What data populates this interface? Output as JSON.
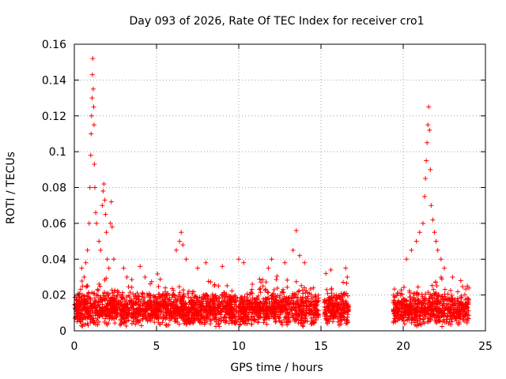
{
  "chart_data": {
    "type": "scatter",
    "title": "Day 093 of 2026, Rate Of TEC Index for receiver cro1",
    "xlabel": "GPS time / hours",
    "ylabel": "ROTI / TECUs",
    "xlim": [
      0,
      25
    ],
    "ylim": [
      0,
      0.16
    ],
    "xticks": [
      0,
      5,
      10,
      15,
      20,
      25
    ],
    "xtick_labels": [
      "0",
      "5",
      "10",
      "15",
      "20",
      "25"
    ],
    "yticks": [
      0,
      0.02,
      0.04,
      0.06,
      0.08,
      0.1,
      0.12,
      0.14,
      0.16
    ],
    "ytick_labels": [
      "0",
      "0.02",
      "0.04",
      "0.06",
      "0.08",
      "0.1",
      "0.12",
      "0.14",
      "0.16"
    ],
    "grid": true,
    "marker": "+",
    "color": "#ff0000",
    "series": [
      {
        "name": "ROTI",
        "segments": [
          {
            "x_range": [
              0.0,
              14.85
            ],
            "base": 0.012,
            "spread": 0.01
          },
          {
            "x_range": [
              15.2,
              16.7
            ],
            "base": 0.012,
            "spread": 0.01
          },
          {
            "x_range": [
              19.4,
              24.0
            ],
            "base": 0.012,
            "spread": 0.01
          }
        ],
        "highlights": [
          [
            0.45,
            0.035
          ],
          [
            0.5,
            0.025
          ],
          [
            0.6,
            0.03
          ],
          [
            0.7,
            0.038
          ],
          [
            0.8,
            0.045
          ],
          [
            0.9,
            0.06
          ],
          [
            0.95,
            0.08
          ],
          [
            1.0,
            0.098
          ],
          [
            1.02,
            0.11
          ],
          [
            1.05,
            0.12
          ],
          [
            1.08,
            0.13
          ],
          [
            1.1,
            0.143
          ],
          [
            1.12,
            0.152
          ],
          [
            1.15,
            0.135
          ],
          [
            1.18,
            0.125
          ],
          [
            1.2,
            0.115
          ],
          [
            1.22,
            0.093
          ],
          [
            1.25,
            0.08
          ],
          [
            1.3,
            0.066
          ],
          [
            1.35,
            0.06
          ],
          [
            1.5,
            0.05
          ],
          [
            1.6,
            0.045
          ],
          [
            1.7,
            0.07
          ],
          [
            1.75,
            0.078
          ],
          [
            1.8,
            0.082
          ],
          [
            1.85,
            0.073
          ],
          [
            1.9,
            0.065
          ],
          [
            1.95,
            0.055
          ],
          [
            2.0,
            0.04
          ],
          [
            2.1,
            0.035
          ],
          [
            2.2,
            0.06
          ],
          [
            2.25,
            0.072
          ],
          [
            2.3,
            0.058
          ],
          [
            2.4,
            0.04
          ],
          [
            3.0,
            0.035
          ],
          [
            3.2,
            0.03
          ],
          [
            4.0,
            0.036
          ],
          [
            4.3,
            0.03
          ],
          [
            6.2,
            0.045
          ],
          [
            6.4,
            0.05
          ],
          [
            6.5,
            0.055
          ],
          [
            6.6,
            0.048
          ],
          [
            6.8,
            0.04
          ],
          [
            7.5,
            0.035
          ],
          [
            8.0,
            0.038
          ],
          [
            9.0,
            0.036
          ],
          [
            10.0,
            0.04
          ],
          [
            10.3,
            0.038
          ],
          [
            11.8,
            0.035
          ],
          [
            12.0,
            0.04
          ],
          [
            12.8,
            0.038
          ],
          [
            13.3,
            0.045
          ],
          [
            13.5,
            0.056
          ],
          [
            13.7,
            0.042
          ],
          [
            14.0,
            0.038
          ],
          [
            15.3,
            0.032
          ],
          [
            15.6,
            0.034
          ],
          [
            16.5,
            0.035
          ],
          [
            16.6,
            0.03
          ],
          [
            20.2,
            0.04
          ],
          [
            20.5,
            0.045
          ],
          [
            20.8,
            0.05
          ],
          [
            21.0,
            0.055
          ],
          [
            21.2,
            0.06
          ],
          [
            21.3,
            0.075
          ],
          [
            21.35,
            0.085
          ],
          [
            21.4,
            0.095
          ],
          [
            21.45,
            0.105
          ],
          [
            21.5,
            0.115
          ],
          [
            21.55,
            0.125
          ],
          [
            21.6,
            0.112
          ],
          [
            21.65,
            0.09
          ],
          [
            21.7,
            0.07
          ],
          [
            21.8,
            0.062
          ],
          [
            21.9,
            0.055
          ],
          [
            22.0,
            0.05
          ],
          [
            22.1,
            0.045
          ],
          [
            22.3,
            0.04
          ],
          [
            22.5,
            0.035
          ],
          [
            23.0,
            0.03
          ],
          [
            23.5,
            0.028
          ],
          [
            23.9,
            0.025
          ]
        ]
      }
    ]
  }
}
